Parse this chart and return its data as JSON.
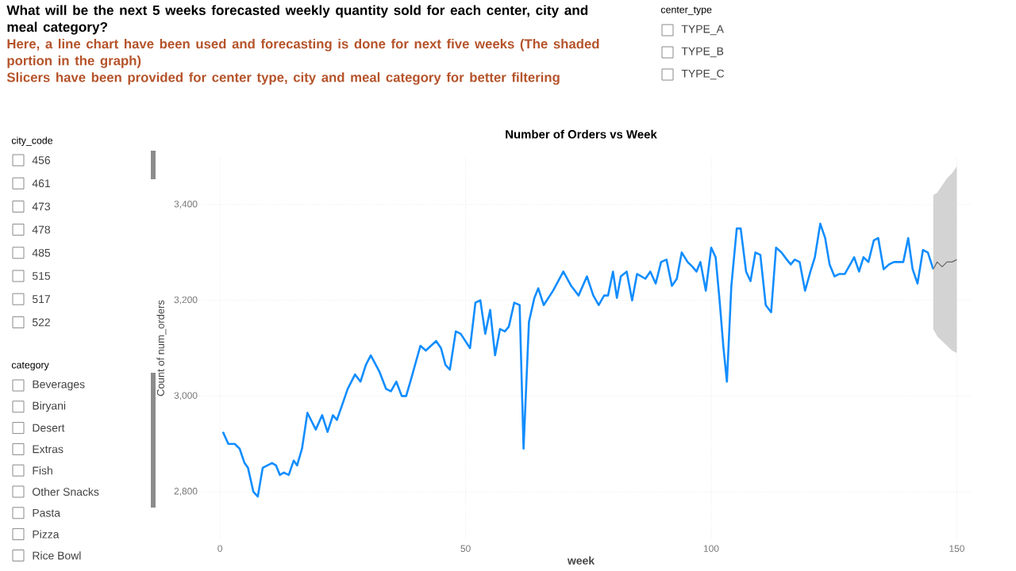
{
  "chart_data": [
    {
      "type": "other",
      "title": "What will be the next 5 weeks forecasted weekly quantity sold for each center, city and meal category?",
      "annotations": [
        "Here, a line chart have been used and forecasting is done for next five weeks (The shaded portion in the graph)",
        "Slicers have been provided for center type, city and meal category for better filtering"
      ]
    },
    {
      "type": "other",
      "title": "city_code",
      "annotations": [
        "456",
        "461",
        "473",
        "478",
        "485",
        "515",
        "517",
        "522"
      ]
    },
    {
      "type": "other",
      "title": "category",
      "annotations": [
        "Beverages",
        "Biryani",
        "Desert",
        "Extras",
        "Fish",
        "Other Snacks",
        "Pasta",
        "Pizza",
        "Rice Bowl"
      ]
    },
    {
      "type": "other",
      "title": "center_type",
      "annotations": [
        "TYPE_A",
        "TYPE_B",
        "TYPE_C"
      ]
    },
    {
      "type": "line",
      "title": "Number of Orders vs Week",
      "xlabel": "week",
      "ylabel": "Count of num_orders",
      "xlim": [
        -6,
        153
      ],
      "ylim": [
        2700,
        3500
      ],
      "xticks": [
        0,
        50,
        100,
        150
      ],
      "yticks": [
        {
          "value": 2800,
          "label": "2,800"
        },
        {
          "value": 3000,
          "label": "3,000"
        },
        {
          "value": 3200,
          "label": "3,200"
        },
        {
          "value": 3400,
          "label": "3,400"
        }
      ],
      "grid": true,
      "series": [
        {
          "color": "#118dff",
          "x": [
            0.6,
            1.7,
            3,
            4,
            5,
            5.7,
            6.8,
            7.7,
            8.7,
            10.6,
            11.4,
            12.2,
            13,
            14,
            15,
            15.7,
            16.7,
            17.8,
            19.5,
            20.8,
            21.9,
            23,
            23.8,
            25,
            26,
            27.5,
            28.6,
            29.7,
            30.7,
            32.5,
            33.8,
            34.8,
            35.9,
            37,
            37.9,
            38.9,
            40.8,
            41.9,
            44,
            45,
            45.9,
            46.8,
            48,
            49,
            50.9,
            52,
            53,
            54,
            55,
            56,
            57,
            58,
            58.8,
            59.9,
            61,
            61.8,
            62.9,
            64,
            64.8,
            65.9,
            67.8,
            69.9,
            71.5,
            73,
            74.7,
            76,
            77.1,
            78.2,
            79,
            80,
            80.8,
            81.6,
            82.8,
            83.9,
            84.9,
            86.6,
            87.6,
            88.7,
            89.8,
            90.9,
            92,
            93,
            94,
            95.2,
            96.2,
            97,
            97.8,
            98.9,
            100,
            100.9,
            101.7,
            102.5,
            103.2,
            104.1,
            105.2,
            106,
            107.1,
            108,
            109,
            110,
            111.1,
            112.2,
            113.2,
            114.3,
            115.4,
            116.2,
            117,
            118,
            119.1,
            120.2,
            121.1,
            122.2,
            123.2,
            124.1,
            125.1,
            126.1,
            127.2,
            128.3,
            129.1,
            130.1,
            131,
            132,
            133.1,
            134,
            135.1,
            136.2,
            137.2,
            138.5,
            139.1,
            140.1,
            141,
            142,
            143.1,
            144.1,
            145.2
          ],
          "values": [
            2925,
            2900,
            2900,
            2890,
            2860,
            2850,
            2800,
            2790,
            2850,
            2860,
            2855,
            2835,
            2840,
            2835,
            2865,
            2855,
            2890,
            2965,
            2930,
            2960,
            2925,
            2960,
            2950,
            2985,
            3015,
            3045,
            3030,
            3065,
            3085,
            3050,
            3015,
            3010,
            3030,
            3000,
            3000,
            3035,
            3105,
            3095,
            3115,
            3100,
            3065,
            3055,
            3135,
            3130,
            3100,
            3195,
            3200,
            3130,
            3180,
            3085,
            3140,
            3135,
            3145,
            3195,
            3190,
            2890,
            3155,
            3205,
            3225,
            3190,
            3220,
            3260,
            3230,
            3210,
            3250,
            3210,
            3190,
            3210,
            3210,
            3260,
            3205,
            3250,
            3260,
            3200,
            3255,
            3245,
            3260,
            3235,
            3280,
            3285,
            3230,
            3245,
            3300,
            3280,
            3270,
            3260,
            3280,
            3220,
            3310,
            3290,
            3200,
            3100,
            3030,
            3230,
            3350,
            3350,
            3260,
            3240,
            3300,
            3295,
            3190,
            3175,
            3310,
            3300,
            3285,
            3275,
            3285,
            3280,
            3220,
            3260,
            3290,
            3360,
            3330,
            3275,
            3250,
            3255,
            3255,
            3275,
            3290,
            3260,
            3290,
            3280,
            3325,
            3330,
            3265,
            3275,
            3280,
            3280,
            3280,
            3330,
            3265,
            3235,
            3305,
            3300,
            3265
          ]
        },
        {
          "color": "#666666",
          "x": [
            145.2,
            146,
            147,
            148,
            149,
            150
          ],
          "values": [
            3265,
            3280,
            3270,
            3280,
            3280,
            3285
          ],
          "lower": [
            3140,
            3125,
            3115,
            3105,
            3095,
            3090
          ],
          "upper": [
            3420,
            3425,
            3440,
            3455,
            3465,
            3480
          ]
        }
      ]
    }
  ]
}
